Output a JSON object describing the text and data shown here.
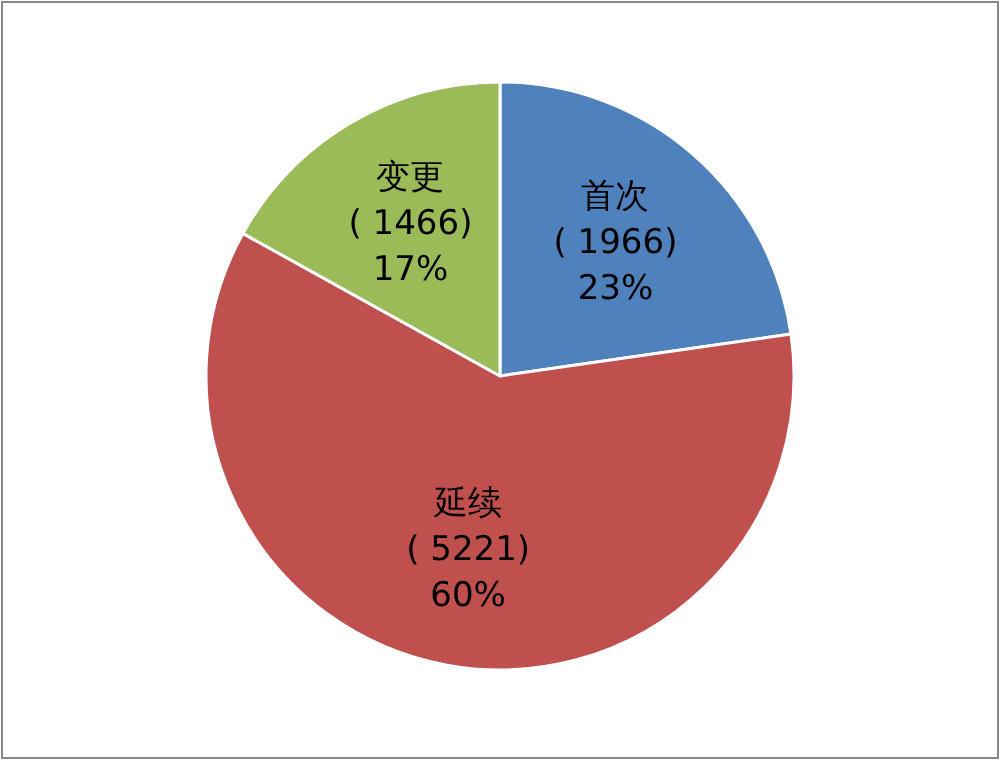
{
  "chart_data": {
    "type": "pie",
    "categories": [
      "首次",
      "延续",
      "变更"
    ],
    "values": [
      1966,
      5221,
      1466
    ],
    "colors": [
      "#4f81bd",
      "#c0504d",
      "#9bbb59"
    ],
    "value_labels": [
      "( 1966)\n23%",
      "( 5221)\n60%",
      "( 1466)\n17%"
    ]
  }
}
